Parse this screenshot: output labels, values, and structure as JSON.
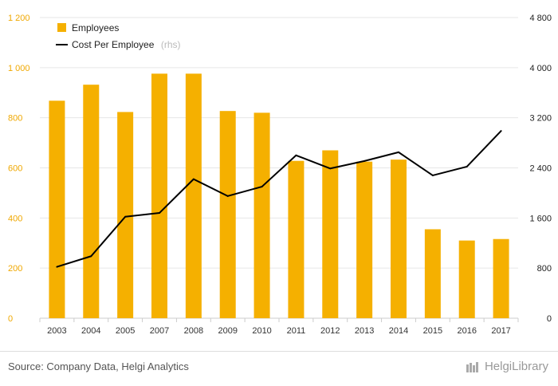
{
  "chart_data": {
    "type": "bar+line",
    "categories": [
      "2003",
      "2004",
      "2005",
      "2007",
      "2008",
      "2009",
      "2010",
      "2011",
      "2012",
      "2013",
      "2014",
      "2015",
      "2016",
      "2017"
    ],
    "series": [
      {
        "name": "Employees",
        "type": "bar",
        "axis": "left",
        "color": "#f5b000",
        "values": [
          868,
          932,
          823,
          976,
          976,
          827,
          820,
          628,
          670,
          625,
          633,
          355,
          310,
          316
        ]
      },
      {
        "name": "Cost Per Employee",
        "name_suffix": "(rhs)",
        "type": "line",
        "axis": "right",
        "color": "#000000",
        "values": [
          820,
          990,
          1620,
          1680,
          2220,
          1950,
          2100,
          2600,
          2390,
          2510,
          2650,
          2280,
          2420,
          2990
        ]
      }
    ],
    "y_left": {
      "ylim": [
        0,
        1200
      ],
      "ticks": [
        "0",
        "200",
        "400",
        "600",
        "800",
        "1 000",
        "1 200"
      ]
    },
    "y_right": {
      "ylim": [
        0,
        4800
      ],
      "ticks": [
        "0",
        "800",
        "1 600",
        "2 400",
        "3 200",
        "4 000",
        "4 800"
      ]
    },
    "grid": true,
    "legend_position": "top-left"
  },
  "legend": {
    "employees": "Employees",
    "cost_per_employee": "Cost Per Employee",
    "rhs_suffix": "(rhs)"
  },
  "footer": {
    "source": "Source: Company Data, Helgi Analytics",
    "brand": "HelgiLibrary"
  }
}
